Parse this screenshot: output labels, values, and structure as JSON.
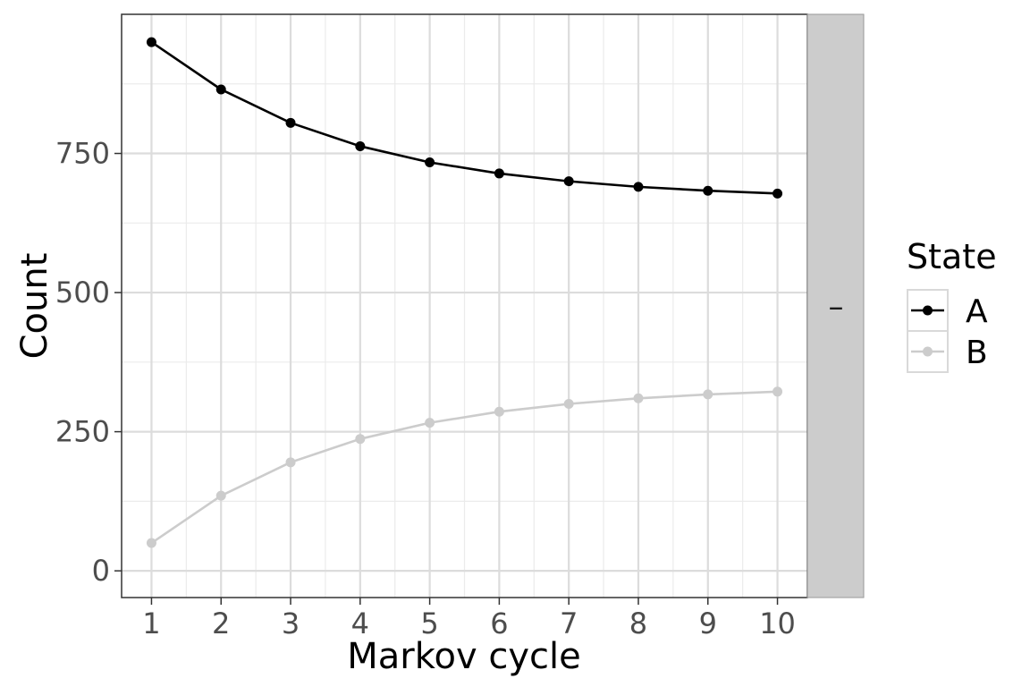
{
  "chart_data": {
    "type": "line",
    "x": [
      1,
      2,
      3,
      4,
      5,
      6,
      7,
      8,
      9,
      10
    ],
    "series": [
      {
        "name": "A",
        "values": [
          950,
          865,
          805,
          763,
          734,
          714,
          700,
          690,
          683,
          678
        ],
        "color": "#000000"
      },
      {
        "name": "B",
        "values": [
          50,
          135,
          195,
          237,
          266,
          286,
          300,
          310,
          317,
          322
        ],
        "color": "#cccccc"
      }
    ],
    "xlabel": "Markov cycle",
    "ylabel": "Count",
    "xlim": [
      0.57,
      10.43
    ],
    "ylim": [
      -48,
      1000
    ],
    "y_ticks": [
      0,
      250,
      500,
      750
    ],
    "y_minor_ticks": [
      125,
      375,
      625,
      875
    ],
    "x_ticks": [
      1,
      2,
      3,
      4,
      5,
      6,
      7,
      8,
      9,
      10
    ],
    "x_tick_labels": [
      "1",
      "2",
      "3",
      "4",
      "5",
      "6",
      "7",
      "8",
      "9",
      "10"
    ],
    "y_tick_labels": [
      "0",
      "250",
      "500",
      "750"
    ],
    "facet_label": "–",
    "legend_title": "State",
    "legend_position": "right",
    "grid": true
  }
}
